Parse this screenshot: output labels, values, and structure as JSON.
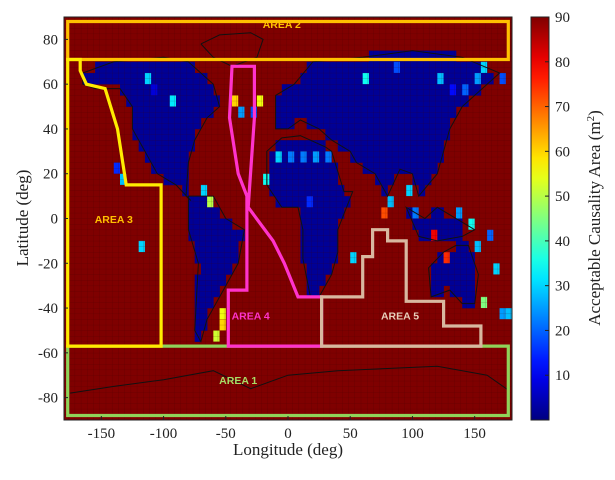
{
  "chart_data": {
    "type": "heatmap",
    "title": "",
    "xlabel": "Longitude (deg)",
    "ylabel": "Latitude (deg)",
    "colorbar_label_prefix": "Acceptable Causality Area (m",
    "colorbar_label_exp": "2",
    "colorbar_label_suffix": ")",
    "colorbar_range": [
      0,
      90
    ],
    "colorbar_ticks": [
      "10",
      "20",
      "30",
      "40",
      "50",
      "60",
      "70",
      "80",
      "90"
    ],
    "colormap": "jet",
    "xlim": [
      -180,
      180
    ],
    "ylim": [
      -90,
      90
    ],
    "xticks": [
      "-150",
      "-100",
      "-50",
      "0",
      "50",
      "100",
      "150"
    ],
    "yticks": [
      "80",
      "60",
      "40",
      "20",
      "0",
      "-20",
      "-40",
      "-60",
      "-80"
    ],
    "grid_resolution_deg": 5,
    "default_value": 90,
    "land_value": 2,
    "land_regions_lonlat": [
      [
        [
          -165,
          65
        ],
        [
          -140,
          70
        ],
        [
          -100,
          72
        ],
        [
          -80,
          70
        ],
        [
          -60,
          60
        ],
        [
          -55,
          50
        ],
        [
          -65,
          45
        ],
        [
          -75,
          35
        ],
        [
          -80,
          25
        ],
        [
          -82,
          10
        ],
        [
          -78,
          8
        ],
        [
          -90,
          15
        ],
        [
          -105,
          20
        ],
        [
          -115,
          30
        ],
        [
          -125,
          40
        ],
        [
          -125,
          50
        ],
        [
          -135,
          58
        ],
        [
          -155,
          58
        ],
        [
          -165,
          60
        ]
      ],
      [
        [
          -80,
          10
        ],
        [
          -60,
          10
        ],
        [
          -50,
          0
        ],
        [
          -35,
          -5
        ],
        [
          -40,
          -20
        ],
        [
          -50,
          -30
        ],
        [
          -65,
          -45
        ],
        [
          -70,
          -55
        ],
        [
          -75,
          -50
        ],
        [
          -72,
          -20
        ],
        [
          -80,
          -5
        ]
      ],
      [
        [
          -10,
          40
        ],
        [
          -10,
          55
        ],
        [
          5,
          60
        ],
        [
          20,
          70
        ],
        [
          60,
          72
        ],
        [
          100,
          75
        ],
        [
          140,
          72
        ],
        [
          170,
          65
        ],
        [
          160,
          60
        ],
        [
          140,
          50
        ],
        [
          130,
          40
        ],
        [
          125,
          30
        ],
        [
          120,
          20
        ],
        [
          105,
          10
        ],
        [
          100,
          20
        ],
        [
          90,
          22
        ],
        [
          80,
          10
        ],
        [
          70,
          20
        ],
        [
          55,
          25
        ],
        [
          50,
          30
        ],
        [
          35,
          35
        ],
        [
          25,
          40
        ],
        [
          10,
          44
        ],
        [
          0,
          40
        ]
      ],
      [
        [
          -17,
          15
        ],
        [
          -17,
          30
        ],
        [
          -5,
          36
        ],
        [
          10,
          37
        ],
        [
          30,
          32
        ],
        [
          35,
          30
        ],
        [
          45,
          12
        ],
        [
          52,
          12
        ],
        [
          40,
          -5
        ],
        [
          40,
          -15
        ],
        [
          35,
          -25
        ],
        [
          25,
          -35
        ],
        [
          18,
          -35
        ],
        [
          12,
          -18
        ],
        [
          12,
          -5
        ],
        [
          8,
          5
        ],
        [
          -5,
          5
        ]
      ],
      [
        [
          113,
          -22
        ],
        [
          115,
          -35
        ],
        [
          130,
          -32
        ],
        [
          140,
          -38
        ],
        [
          150,
          -38
        ],
        [
          153,
          -25
        ],
        [
          145,
          -12
        ],
        [
          135,
          -12
        ],
        [
          125,
          -15
        ]
      ],
      [
        [
          95,
          5
        ],
        [
          105,
          -8
        ],
        [
          120,
          -10
        ],
        [
          140,
          -8
        ],
        [
          150,
          -5
        ],
        [
          120,
          5
        ],
        [
          110,
          0
        ]
      ]
    ],
    "speckle_cells": [
      {
        "lon": -140,
        "lat": 20,
        "value": 15
      },
      {
        "lon": -135,
        "lat": 15,
        "value": 28
      },
      {
        "lon": -115,
        "lat": 60,
        "value": 30
      },
      {
        "lon": -110,
        "lat": 55,
        "value": 8
      },
      {
        "lon": -95,
        "lat": 50,
        "value": 32
      },
      {
        "lon": -120,
        "lat": -15,
        "value": 30
      },
      {
        "lon": -55,
        "lat": -45,
        "value": 55
      },
      {
        "lon": -55,
        "lat": -50,
        "value": 60
      },
      {
        "lon": -60,
        "lat": -55,
        "value": 52
      },
      {
        "lon": -45,
        "lat": 50,
        "value": 60
      },
      {
        "lon": -40,
        "lat": 45,
        "value": 25
      },
      {
        "lon": -30,
        "lat": 45,
        "value": 18
      },
      {
        "lon": -25,
        "lat": 50,
        "value": 55
      },
      {
        "lon": -70,
        "lat": 10,
        "value": 30
      },
      {
        "lon": -65,
        "lat": 5,
        "value": 50
      },
      {
        "lon": -20,
        "lat": 15,
        "value": 35
      },
      {
        "lon": -10,
        "lat": 25,
        "value": 30
      },
      {
        "lon": 0,
        "lat": 25,
        "value": 22
      },
      {
        "lon": 10,
        "lat": 25,
        "value": 22
      },
      {
        "lon": 20,
        "lat": 25,
        "value": 25
      },
      {
        "lon": 30,
        "lat": 25,
        "value": 22
      },
      {
        "lon": 60,
        "lat": 60,
        "value": 35
      },
      {
        "lon": 85,
        "lat": 65,
        "value": 18
      },
      {
        "lon": 120,
        "lat": 60,
        "value": 28
      },
      {
        "lon": 130,
        "lat": 55,
        "value": 12
      },
      {
        "lon": 140,
        "lat": 55,
        "value": 20
      },
      {
        "lon": 150,
        "lat": 60,
        "value": 25
      },
      {
        "lon": 155,
        "lat": 65,
        "value": 30
      },
      {
        "lon": 170,
        "lat": 60,
        "value": 18
      },
      {
        "lon": 75,
        "lat": 0,
        "value": 72
      },
      {
        "lon": 80,
        "lat": 5,
        "value": 28
      },
      {
        "lon": 95,
        "lat": 10,
        "value": 30
      },
      {
        "lon": 100,
        "lat": 0,
        "value": 22
      },
      {
        "lon": 115,
        "lat": -10,
        "value": 80
      },
      {
        "lon": 125,
        "lat": -20,
        "value": 75
      },
      {
        "lon": 135,
        "lat": 0,
        "value": 25
      },
      {
        "lon": 145,
        "lat": -5,
        "value": 35
      },
      {
        "lon": 150,
        "lat": -15,
        "value": 28
      },
      {
        "lon": 160,
        "lat": -10,
        "value": 20
      },
      {
        "lon": 165,
        "lat": -25,
        "value": 30
      },
      {
        "lon": 170,
        "lat": -45,
        "value": 25
      },
      {
        "lon": 175,
        "lat": -45,
        "value": 28
      },
      {
        "lon": 155,
        "lat": -40,
        "value": 45
      },
      {
        "lon": 50,
        "lat": -20,
        "value": 30
      },
      {
        "lon": 15,
        "lat": 5,
        "value": 15
      }
    ],
    "areas": [
      {
        "name": "AREA 1",
        "color": "#8fd45a",
        "label_lonlat": [
          -40,
          -74
        ],
        "label_color": "#a8dd66",
        "polygon": [
          [
            -177,
            -57
          ],
          [
            177,
            -57
          ],
          [
            177,
            -88
          ],
          [
            -177,
            -88
          ]
        ]
      },
      {
        "name": "AREA 2",
        "color": "#ffc000",
        "label_lonlat": [
          -5,
          85
        ],
        "label_color": "#ffc000",
        "polygon": [
          [
            -177,
            88
          ],
          [
            177,
            88
          ],
          [
            177,
            71
          ],
          [
            -177,
            71
          ]
        ]
      },
      {
        "name": "AREA 3",
        "color": "#ffeb00",
        "label_lonlat": [
          -140,
          -2
        ],
        "label_color": "#ffc000",
        "polygon": [
          [
            -177,
            71
          ],
          [
            -177,
            -57
          ],
          [
            -102,
            -57
          ],
          [
            -102,
            15
          ],
          [
            -130,
            15
          ],
          [
            -137,
            40
          ],
          [
            -147,
            58
          ],
          [
            -162,
            60
          ],
          [
            -167,
            66
          ],
          [
            -167,
            71
          ]
        ]
      },
      {
        "name": "AREA 4",
        "color": "#ff33cc",
        "label_lonlat": [
          -30,
          -45
        ],
        "label_color": "#ff33cc",
        "polygon": [
          [
            -48,
            -57
          ],
          [
            -48,
            -32
          ],
          [
            -33,
            -32
          ],
          [
            -33,
            10
          ],
          [
            -40,
            20
          ],
          [
            -47,
            45
          ],
          [
            -45,
            68
          ],
          [
            -27,
            68
          ],
          [
            -27,
            45
          ],
          [
            -32,
            5
          ],
          [
            -12,
            -10
          ],
          [
            -3,
            -20
          ],
          [
            8,
            -35
          ],
          [
            27,
            -35
          ],
          [
            27,
            -57
          ]
        ]
      },
      {
        "name": "AREA 5",
        "color": "#d8b8a0",
        "label_lonlat": [
          90,
          -45
        ],
        "label_color": "#e8d0bc",
        "polygon": [
          [
            27,
            -57
          ],
          [
            27,
            -35
          ],
          [
            60,
            -35
          ],
          [
            60,
            -17
          ],
          [
            68,
            -17
          ],
          [
            68,
            -5
          ],
          [
            80,
            -5
          ],
          [
            80,
            -10
          ],
          [
            95,
            -10
          ],
          [
            95,
            -37
          ],
          [
            125,
            -37
          ],
          [
            125,
            -48
          ],
          [
            155,
            -48
          ],
          [
            155,
            -57
          ]
        ]
      }
    ]
  }
}
